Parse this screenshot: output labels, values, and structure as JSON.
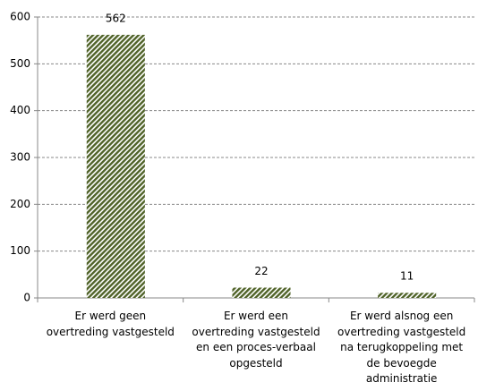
{
  "chart_data": {
    "type": "bar",
    "categories": [
      "Er werd geen\novertreding vastgesteld",
      "Er werd een\novertreding vastgesteld\nen een proces-verbaal\nopgesteld",
      "Er werd alsnog een\novertreding vastgesteld\nna terugkoppeling met\nde bevoegde\nadministratie"
    ],
    "values": [
      562,
      22,
      11
    ],
    "color": "#4f6228",
    "ylim": [
      0,
      600
    ],
    "yticks": [
      0,
      100,
      200,
      300,
      400,
      500,
      600
    ],
    "grid": true
  }
}
